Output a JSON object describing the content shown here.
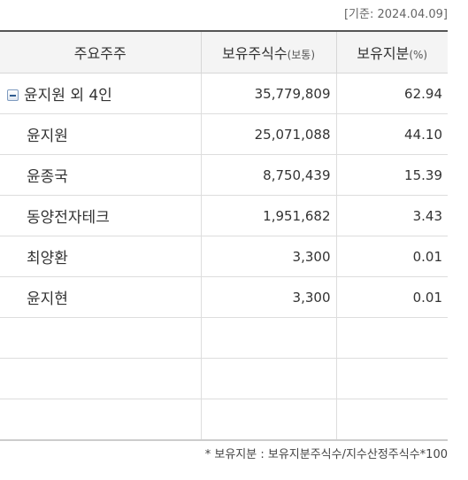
{
  "date_label": "[기준: 2024.04.09]",
  "table": {
    "headers": {
      "holder": "주요주주",
      "shares": "보유주식수",
      "shares_unit": "(보통)",
      "ratio": "보유지분",
      "ratio_unit": "(%)"
    },
    "rows": [
      {
        "name": "윤지원 외 4인",
        "shares": "35,779,809",
        "ratio": "62.94"
      },
      {
        "name": "윤지원",
        "shares": "25,071,088",
        "ratio": "44.10"
      },
      {
        "name": "윤종국",
        "shares": "8,750,439",
        "ratio": "15.39"
      },
      {
        "name": "동양전자테크",
        "shares": "1,951,682",
        "ratio": "3.43"
      },
      {
        "name": "최양환",
        "shares": "3,300",
        "ratio": "0.01"
      },
      {
        "name": "윤지현",
        "shares": "3,300",
        "ratio": "0.01"
      }
    ]
  },
  "footnote": "* 보유지분 : 보유지분주식수/지수산정주식수*100",
  "icons": {
    "group_toggle": "minus-collapse-icon"
  }
}
